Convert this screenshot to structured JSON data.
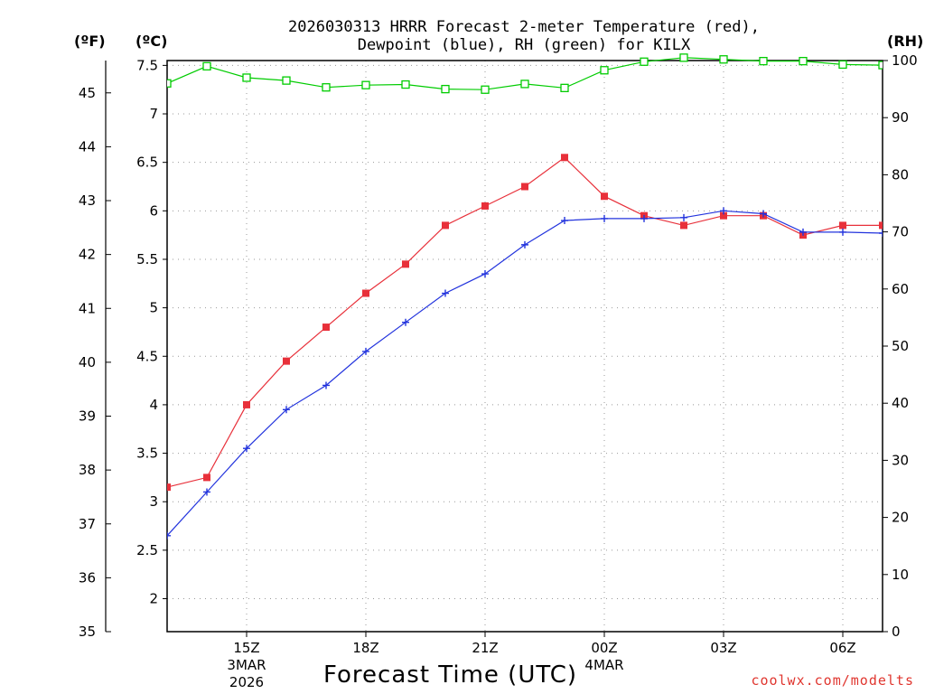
{
  "chart_data": {
    "type": "line",
    "title_line1": "2026030313 HRRR Forecast 2-meter Temperature (red),",
    "title_line2": "Dewpoint (blue), RH (green) for KILX",
    "unit_f": "(ºF)",
    "unit_c": "(ºC)",
    "unit_rh": "(RH)",
    "xlabel": "Forecast Time (UTC)",
    "credit": "coolwx.com/modelts",
    "x_range_hours": [
      13,
      31
    ],
    "x_ticks": [
      {
        "hour": 15,
        "lines": [
          "15Z",
          "3MAR",
          "2026"
        ]
      },
      {
        "hour": 18,
        "lines": [
          "18Z"
        ]
      },
      {
        "hour": 21,
        "lines": [
          "21Z"
        ]
      },
      {
        "hour": 24,
        "lines": [
          "00Z",
          "4MAR"
        ]
      },
      {
        "hour": 27,
        "lines": [
          "03Z"
        ]
      },
      {
        "hour": 30,
        "lines": [
          "06Z"
        ]
      }
    ],
    "ylim_c": [
      1.66,
      7.55
    ],
    "yticks_c": [
      2,
      2.5,
      3,
      3.5,
      4,
      4.5,
      5,
      5.5,
      6,
      6.5,
      7,
      7.5
    ],
    "ylim_f": [
      35,
      45.6
    ],
    "yticks_f": [
      35,
      36,
      37,
      38,
      39,
      40,
      41,
      42,
      43,
      44,
      45
    ],
    "ylim_rh": [
      0,
      100
    ],
    "yticks_rh": [
      0,
      10,
      20,
      30,
      40,
      50,
      60,
      70,
      80,
      90,
      100
    ],
    "colors": {
      "temperature": "#e8303a",
      "dewpoint": "#2233dd",
      "rh": "#00cc00",
      "grid": "#999999"
    },
    "series": [
      {
        "name": "Temperature",
        "axis": "c",
        "marker": "square-filled",
        "x": [
          13,
          14,
          15,
          16,
          17,
          18,
          19,
          20,
          21,
          22,
          23,
          24,
          25,
          26,
          27,
          28,
          29,
          30,
          31
        ],
        "values": [
          3.15,
          3.25,
          4.0,
          4.45,
          4.8,
          5.15,
          5.45,
          5.85,
          6.05,
          6.25,
          6.55,
          6.15,
          5.95,
          5.85,
          5.95,
          5.95,
          5.75,
          5.85,
          5.85
        ]
      },
      {
        "name": "Dewpoint",
        "axis": "c",
        "marker": "plus",
        "x": [
          13,
          14,
          15,
          16,
          17,
          18,
          19,
          20,
          21,
          22,
          23,
          24,
          25,
          26,
          27,
          28,
          29,
          30,
          31
        ],
        "values": [
          2.65,
          3.1,
          3.55,
          3.95,
          4.2,
          4.55,
          4.85,
          5.15,
          5.35,
          5.65,
          5.9,
          5.92,
          5.92,
          5.93,
          6.0,
          5.97,
          5.78,
          5.78,
          5.77
        ]
      },
      {
        "name": "RH",
        "axis": "rh",
        "marker": "square-open",
        "x": [
          13,
          14,
          15,
          16,
          17,
          18,
          19,
          20,
          21,
          22,
          23,
          24,
          25,
          26,
          27,
          28,
          29,
          30,
          31
        ],
        "values": [
          96,
          99,
          97,
          96.5,
          95.3,
          95.7,
          95.8,
          95,
          94.9,
          95.9,
          95.2,
          98.3,
          99.8,
          100.5,
          100.2,
          99.9,
          99.9,
          99.3,
          99.2
        ]
      }
    ]
  }
}
